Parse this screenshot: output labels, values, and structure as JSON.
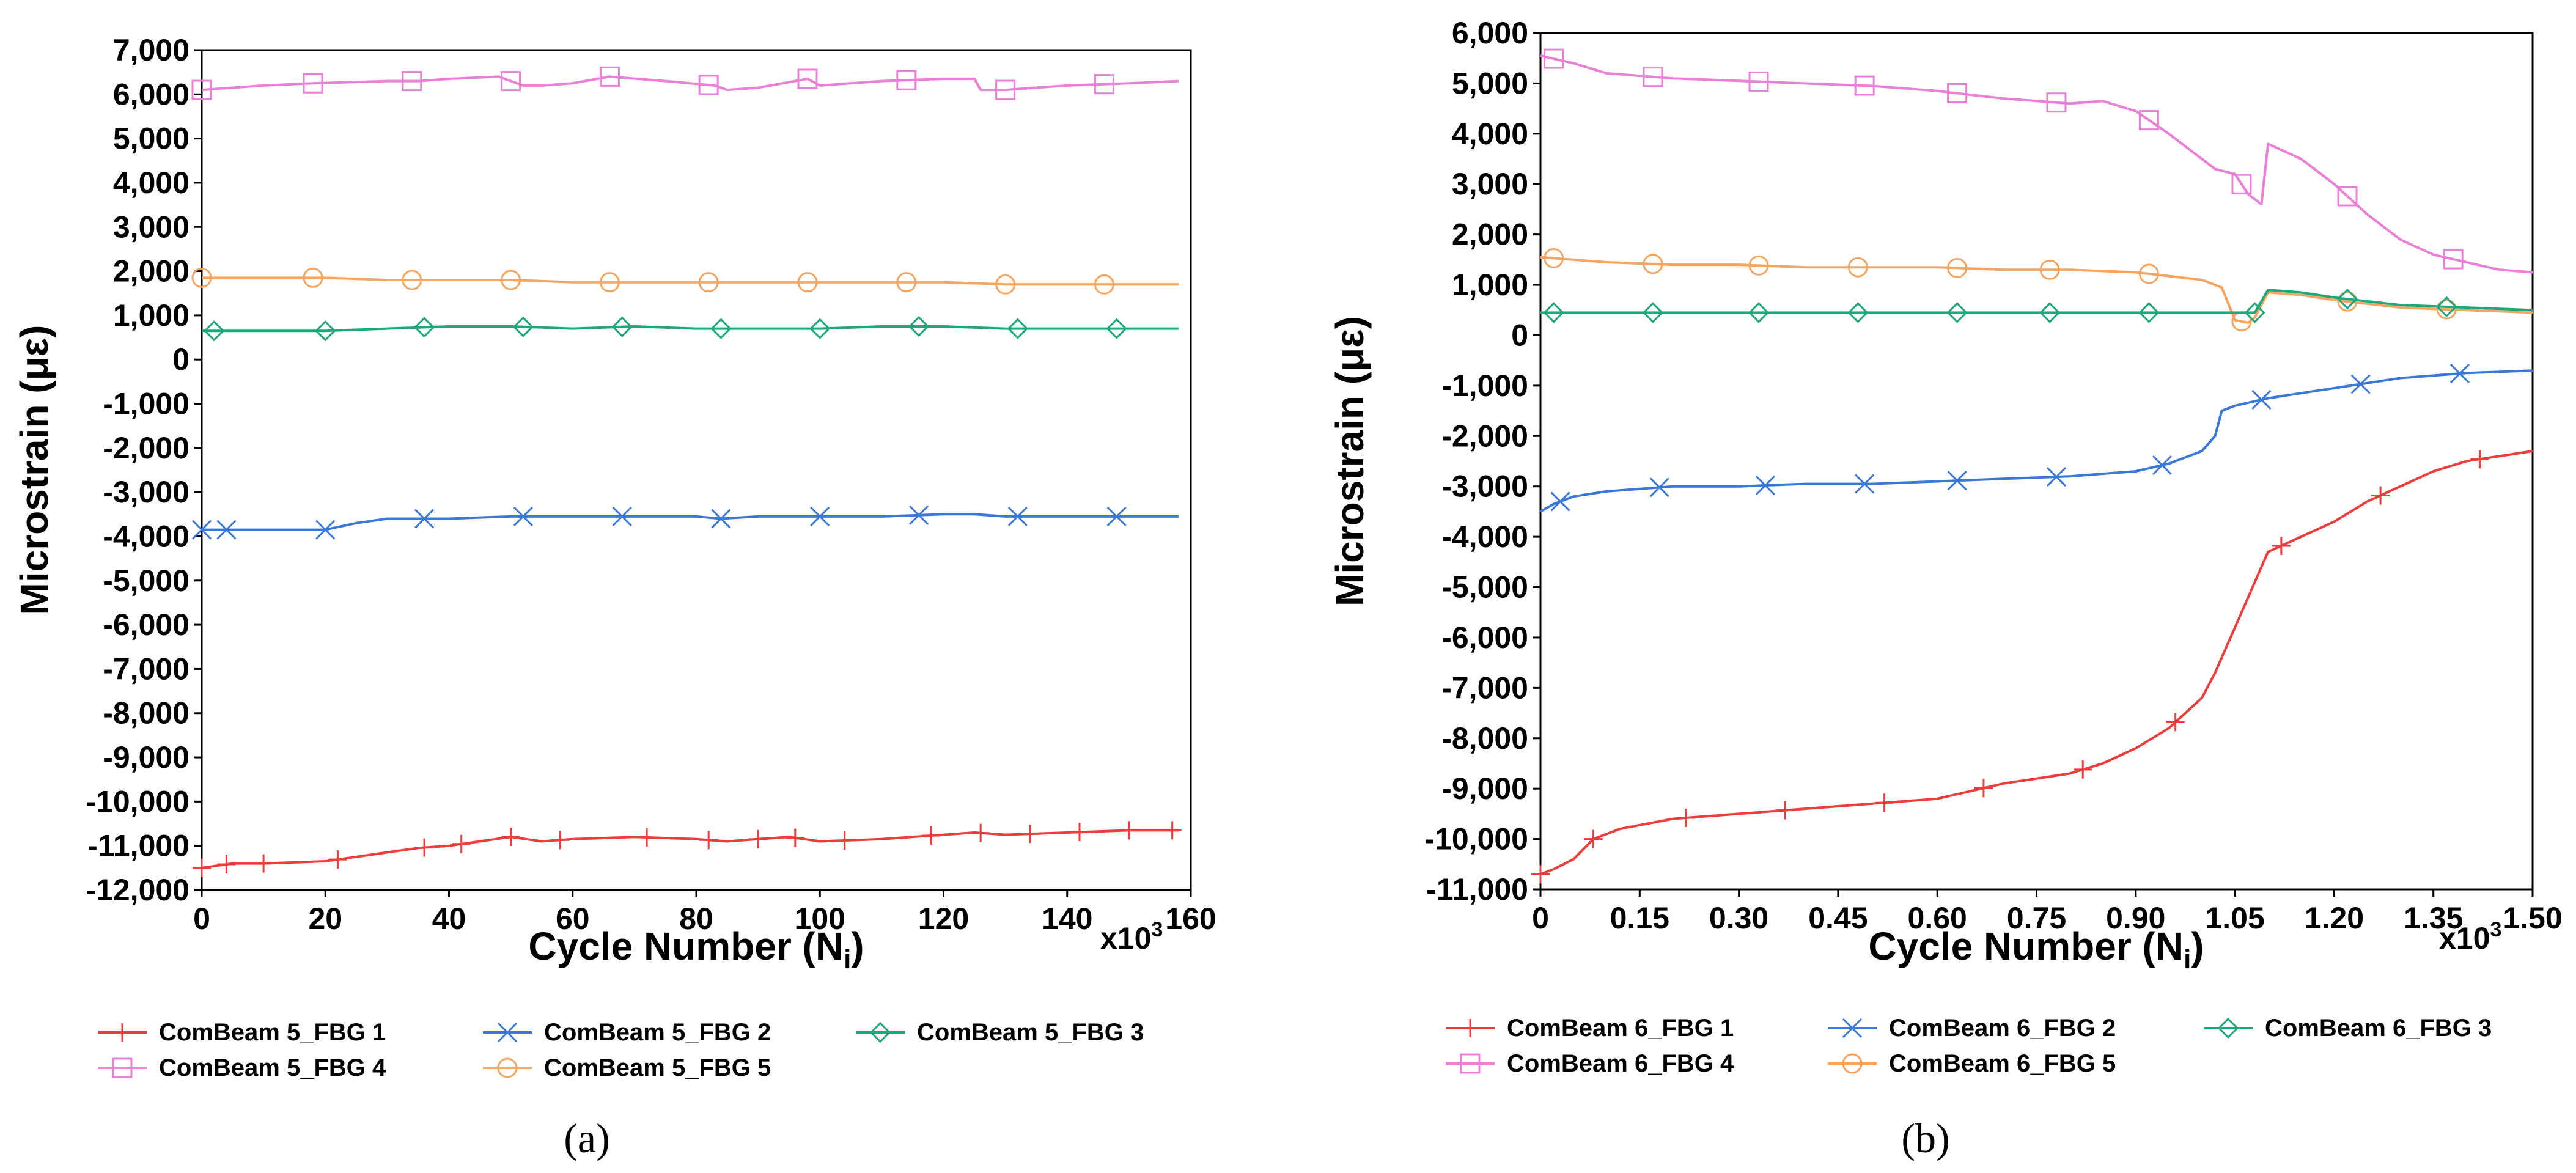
{
  "chart_data": [
    {
      "type": "line",
      "panel_label": "(a)",
      "xlabel": "Cycle Number (N",
      "xlabel_sub": "i",
      "xlabel_suffix": ")",
      "ylabel": "Microstrain (με)",
      "multiplier": "x10",
      "multiplier_exp": "3",
      "xlim": [
        0,
        160
      ],
      "ylim": [
        -12000,
        7000
      ],
      "xticks": [
        0,
        20,
        40,
        60,
        80,
        100,
        120,
        140,
        160
      ],
      "xtick_labels": [
        "0",
        "20",
        "40",
        "60",
        "80",
        "100",
        "120",
        "140",
        "160"
      ],
      "yticks": [
        7000,
        6000,
        5000,
        4000,
        3000,
        2000,
        1000,
        0,
        -1000,
        -2000,
        -3000,
        -4000,
        -5000,
        -6000,
        -7000,
        -8000,
        -9000,
        -10000,
        -11000,
        -12000
      ],
      "ytick_labels": [
        "7,000",
        "6,000",
        "5,000",
        "4,000",
        "3,000",
        "2,000",
        "1,000",
        "0",
        "-1,000",
        "-2,000",
        "-3,000",
        "-4,000",
        "-5,000",
        "-6,000",
        "-7,000",
        "-8,000",
        "-9,000",
        "-10,000",
        "-11,000",
        "-12,000"
      ],
      "series": [
        {
          "name": "ComBeam 5_FBG 1",
          "color": "#ee3b3b",
          "marker": "plus",
          "x": [
            0,
            5,
            10,
            20,
            25,
            30,
            35,
            40,
            45,
            50,
            55,
            60,
            70,
            80,
            85,
            90,
            95,
            100,
            110,
            120,
            125,
            130,
            140,
            150,
            158
          ],
          "y": [
            -11500,
            -11400,
            -11400,
            -11350,
            -11250,
            -11150,
            -11050,
            -11000,
            -10900,
            -10800,
            -10900,
            -10850,
            -10800,
            -10850,
            -10900,
            -10850,
            -10800,
            -10900,
            -10850,
            -10750,
            -10700,
            -10750,
            -10700,
            -10650,
            -10650
          ],
          "marker_x": [
            0,
            4,
            10,
            22,
            36,
            42,
            50,
            58,
            72,
            82,
            90,
            96,
            104,
            118,
            126,
            134,
            142,
            150,
            157
          ]
        },
        {
          "name": "ComBeam 5_FBG 4",
          "color": "#ea7fd6",
          "marker": "square",
          "x": [
            0,
            5,
            10,
            18,
            30,
            35,
            40,
            48,
            52,
            55,
            60,
            66,
            75,
            83,
            85,
            90,
            98,
            100,
            110,
            120,
            125,
            126,
            130,
            140,
            150,
            158
          ],
          "y": [
            6100,
            6150,
            6200,
            6250,
            6300,
            6300,
            6350,
            6400,
            6200,
            6200,
            6250,
            6400,
            6300,
            6200,
            6100,
            6150,
            6350,
            6200,
            6300,
            6350,
            6350,
            6100,
            6100,
            6200,
            6250,
            6300
          ],
          "marker_x": [
            0,
            18,
            34,
            50,
            66,
            82,
            98,
            114,
            130,
            146
          ]
        },
        {
          "name": "ComBeam 5_FBG 2",
          "color": "#3a78d8",
          "marker": "x",
          "x": [
            0,
            5,
            10,
            20,
            25,
            30,
            40,
            50,
            60,
            70,
            80,
            84,
            90,
            100,
            110,
            120,
            125,
            130,
            140,
            150,
            158
          ],
          "y": [
            -3850,
            -3850,
            -3850,
            -3850,
            -3700,
            -3600,
            -3600,
            -3550,
            -3550,
            -3550,
            -3550,
            -3600,
            -3550,
            -3550,
            -3550,
            -3500,
            -3500,
            -3550,
            -3550,
            -3550,
            -3550
          ],
          "marker_x": [
            0,
            4,
            20,
            36,
            52,
            68,
            84,
            100,
            116,
            132,
            148
          ]
        },
        {
          "name": "ComBeam 5_FBG 5",
          "color": "#f5a55f",
          "marker": "circle",
          "x": [
            0,
            10,
            20,
            30,
            40,
            50,
            60,
            70,
            80,
            90,
            100,
            110,
            120,
            130,
            140,
            150,
            158
          ],
          "y": [
            1850,
            1850,
            1850,
            1800,
            1800,
            1800,
            1750,
            1750,
            1750,
            1750,
            1750,
            1750,
            1750,
            1700,
            1700,
            1700,
            1700
          ],
          "marker_x": [
            0,
            18,
            34,
            50,
            66,
            82,
            98,
            114,
            130,
            146
          ]
        },
        {
          "name": "ComBeam 5_FBG 3",
          "color": "#1fa67a",
          "marker": "diamond",
          "x": [
            0,
            10,
            20,
            30,
            40,
            50,
            60,
            70,
            80,
            90,
            100,
            110,
            120,
            130,
            140,
            150,
            158
          ],
          "y": [
            650,
            650,
            650,
            700,
            750,
            750,
            700,
            750,
            700,
            700,
            700,
            750,
            750,
            700,
            700,
            700,
            700
          ],
          "marker_x": [
            2,
            20,
            36,
            52,
            68,
            84,
            100,
            116,
            132,
            148
          ]
        }
      ],
      "legend_rows": [
        [
          "ComBeam 5_FBG 1",
          "ComBeam 5_FBG 2",
          "ComBeam 5_FBG 3"
        ],
        [
          "ComBeam 5_FBG 4",
          "ComBeam 5_FBG 5"
        ]
      ]
    },
    {
      "type": "line",
      "panel_label": "(b)",
      "xlabel": "Cycle Number (N",
      "xlabel_sub": "i",
      "xlabel_suffix": ")",
      "ylabel": "Microstrain (με)",
      "multiplier": "x10",
      "multiplier_exp": "3",
      "xlim": [
        0,
        1.5
      ],
      "ylim": [
        -11000,
        6000
      ],
      "xticks": [
        0,
        0.15,
        0.3,
        0.45,
        0.6,
        0.75,
        0.9,
        1.05,
        1.2,
        1.35,
        1.5
      ],
      "xtick_labels": [
        "0",
        "0.15",
        "0.30",
        "0.45",
        "0.60",
        "0.75",
        "0.90",
        "1.05",
        "1.20",
        "1.35",
        "1.50"
      ],
      "yticks": [
        6000,
        5000,
        4000,
        3000,
        2000,
        1000,
        0,
        -1000,
        -2000,
        -3000,
        -4000,
        -5000,
        -6000,
        -7000,
        -8000,
        -9000,
        -10000,
        -11000
      ],
      "ytick_labels": [
        "6,000",
        "5,000",
        "4,000",
        "3,000",
        "2,000",
        "1,000",
        "0",
        "-1,000",
        "-2,000",
        "-3,000",
        "-4,000",
        "-5,000",
        "-6,000",
        "-7,000",
        "-8,000",
        "-9,000",
        "-10,000",
        "-11,000"
      ],
      "series": [
        {
          "name": "ComBeam 6_FBG 1",
          "color": "#ee3b3b",
          "marker": "plus",
          "x": [
            0,
            0.02,
            0.05,
            0.08,
            0.12,
            0.2,
            0.3,
            0.4,
            0.5,
            0.6,
            0.7,
            0.8,
            0.85,
            0.9,
            0.95,
            1.0,
            1.02,
            1.05,
            1.1,
            1.15,
            1.2,
            1.25,
            1.3,
            1.35,
            1.4,
            1.5
          ],
          "y": [
            -10700,
            -10600,
            -10400,
            -10000,
            -9800,
            -9600,
            -9500,
            -9400,
            -9300,
            -9200,
            -8900,
            -8700,
            -8500,
            -8200,
            -7800,
            -7200,
            -6700,
            -5800,
            -4300,
            -4000,
            -3700,
            -3300,
            -3000,
            -2700,
            -2500,
            -2300
          ],
          "marker_x": [
            0,
            0.08,
            0.22,
            0.37,
            0.52,
            0.67,
            0.82,
            0.96,
            1.12,
            1.27,
            1.42
          ]
        },
        {
          "name": "ComBeam 6_FBG 4",
          "color": "#ea7fd6",
          "marker": "square",
          "x": [
            0,
            0.05,
            0.1,
            0.2,
            0.3,
            0.4,
            0.5,
            0.6,
            0.7,
            0.8,
            0.85,
            0.9,
            0.95,
            1.0,
            1.02,
            1.05,
            1.07,
            1.09,
            1.1,
            1.15,
            1.2,
            1.25,
            1.3,
            1.35,
            1.4,
            1.45,
            1.5
          ],
          "y": [
            5550,
            5400,
            5200,
            5100,
            5050,
            5000,
            4950,
            4850,
            4700,
            4600,
            4650,
            4450,
            4000,
            3500,
            3300,
            3200,
            2800,
            2600,
            3800,
            3500,
            3000,
            2400,
            1900,
            1600,
            1450,
            1300,
            1250
          ],
          "marker_x": [
            0.02,
            0.17,
            0.33,
            0.49,
            0.63,
            0.78,
            0.92,
            1.06,
            1.22,
            1.38
          ]
        },
        {
          "name": "ComBeam 6_FBG 2",
          "color": "#3a78d8",
          "marker": "x",
          "x": [
            0,
            0.02,
            0.05,
            0.1,
            0.2,
            0.3,
            0.4,
            0.5,
            0.6,
            0.7,
            0.8,
            0.9,
            0.95,
            1.0,
            1.02,
            1.03,
            1.05,
            1.1,
            1.15,
            1.2,
            1.3,
            1.4,
            1.5
          ],
          "y": [
            -3500,
            -3350,
            -3200,
            -3100,
            -3000,
            -3000,
            -2950,
            -2950,
            -2900,
            -2850,
            -2800,
            -2700,
            -2550,
            -2300,
            -2000,
            -1500,
            -1400,
            -1250,
            -1150,
            -1050,
            -850,
            -750,
            -700
          ],
          "marker_x": [
            0.03,
            0.18,
            0.34,
            0.49,
            0.63,
            0.78,
            0.94,
            1.09,
            1.24,
            1.39
          ]
        },
        {
          "name": "ComBeam 6_FBG 5",
          "color": "#f5a55f",
          "marker": "circle",
          "x": [
            0,
            0.1,
            0.2,
            0.3,
            0.4,
            0.5,
            0.6,
            0.7,
            0.8,
            0.9,
            1.0,
            1.03,
            1.05,
            1.07,
            1.08,
            1.1,
            1.15,
            1.2,
            1.3,
            1.4,
            1.5
          ],
          "y": [
            1550,
            1450,
            1400,
            1400,
            1350,
            1350,
            1350,
            1300,
            1300,
            1250,
            1100,
            950,
            300,
            250,
            350,
            850,
            800,
            700,
            550,
            500,
            450
          ],
          "marker_x": [
            0.02,
            0.17,
            0.33,
            0.48,
            0.63,
            0.77,
            0.92,
            1.06,
            1.22,
            1.37
          ]
        },
        {
          "name": "ComBeam 6_FBG 3",
          "color": "#1fa67a",
          "marker": "diamond",
          "x": [
            0,
            0.1,
            0.2,
            0.3,
            0.4,
            0.5,
            0.6,
            0.7,
            0.8,
            0.9,
            1.0,
            1.05,
            1.08,
            1.1,
            1.15,
            1.2,
            1.3,
            1.4,
            1.5
          ],
          "y": [
            450,
            450,
            450,
            450,
            450,
            450,
            450,
            450,
            450,
            450,
            450,
            450,
            450,
            900,
            850,
            750,
            600,
            550,
            500
          ],
          "marker_x": [
            0.02,
            0.17,
            0.33,
            0.48,
            0.63,
            0.77,
            0.92,
            1.08,
            1.22,
            1.37
          ]
        }
      ],
      "legend_rows": [
        [
          "ComBeam 6_FBG 1",
          "ComBeam 6_FBG 2",
          "ComBeam 6_FBG 3"
        ],
        [
          "ComBeam 6_FBG 4",
          "ComBeam 6_FBG 5"
        ]
      ]
    }
  ]
}
